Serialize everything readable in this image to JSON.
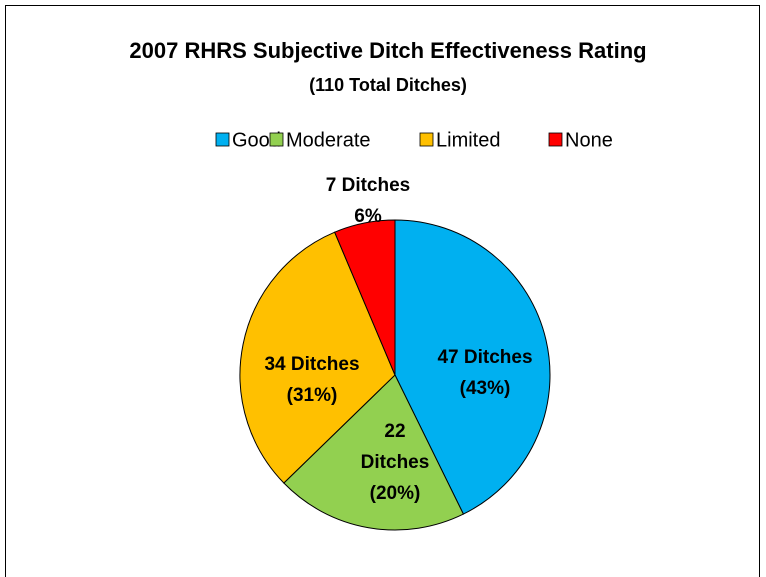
{
  "chart_data": {
    "type": "pie",
    "title": "2007 RHRS Subjective Ditch Effectiveness Rating",
    "subtitle": "(110 Total Ditches)",
    "categories": [
      "Good",
      "Moderate",
      "Limited",
      "None"
    ],
    "values": [
      47,
      22,
      34,
      7
    ],
    "value_labels": [
      [
        "47 Ditches",
        "(43%)"
      ],
      [
        "22",
        "Ditches",
        "(20%)"
      ],
      [
        "34 Ditches",
        "(31%)"
      ],
      [
        "7 Ditches",
        "6%"
      ]
    ],
    "colors": [
      "#00b0f0",
      "#92d050",
      "#ffc000",
      "#ff0000"
    ],
    "legend": "top"
  }
}
